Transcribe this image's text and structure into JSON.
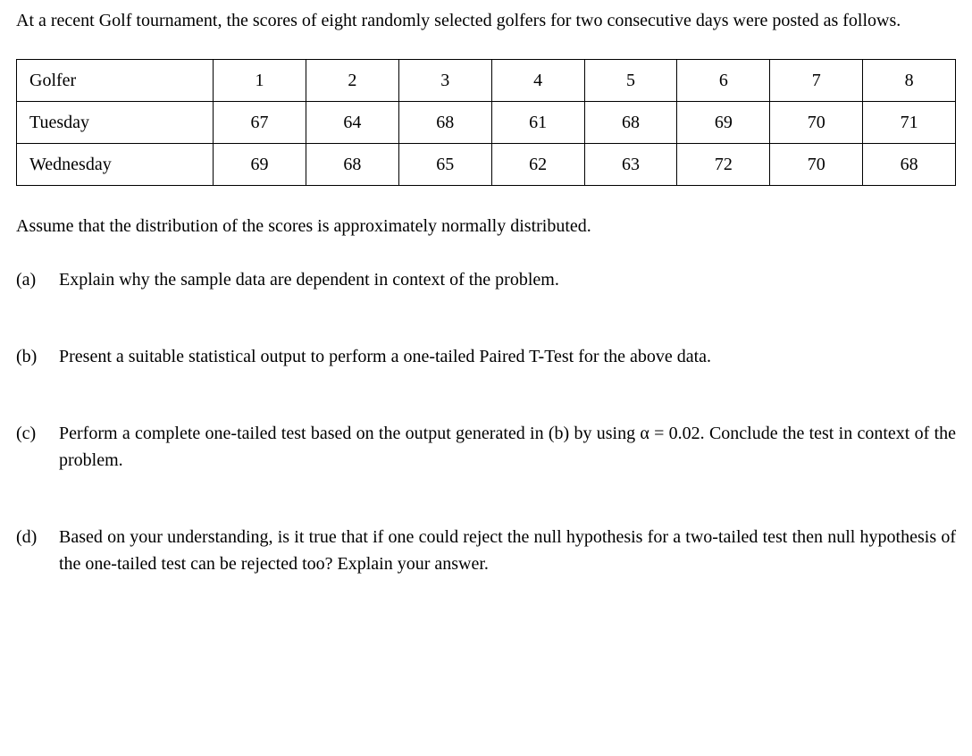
{
  "intro": "At a recent Golf tournament, the scores of eight randomly selected golfers for two consecutive days were posted as follows.",
  "table": {
    "row_headers": [
      "Golfer",
      "Tuesday",
      "Wednesday"
    ],
    "rows": [
      [
        "1",
        "2",
        "3",
        "4",
        "5",
        "6",
        "7",
        "8"
      ],
      [
        "67",
        "64",
        "68",
        "61",
        "68",
        "69",
        "70",
        "71"
      ],
      [
        "69",
        "68",
        "65",
        "62",
        "63",
        "72",
        "70",
        "68"
      ]
    ],
    "border_color": "#000000",
    "background_color": "#ffffff",
    "text_color": "#000000",
    "fontsize": 20,
    "header_col_width": 220
  },
  "assumption": "Assume that the distribution of the scores is approximately normally distributed.",
  "questions": [
    {
      "label": "(a)",
      "text": "Explain why the sample data are dependent in context of the problem."
    },
    {
      "label": "(b)",
      "text": "Present a suitable statistical output to perform a one-tailed Paired T-Test for the above data."
    },
    {
      "label": "(c)",
      "text": "Perform a complete one-tailed test based on the output generated in (b) by using α = 0.02. Conclude the test in context of the problem."
    },
    {
      "label": "(d)",
      "text": "Based on your understanding, is it true that if one could reject the null hypothesis for a two-tailed test then null hypothesis of the one-tailed test can be rejected too?  Explain your answer."
    }
  ],
  "styling": {
    "font_family": "Georgia, Times New Roman, serif",
    "body_fontsize": 20,
    "text_color": "#000000",
    "background_color": "#ffffff"
  }
}
